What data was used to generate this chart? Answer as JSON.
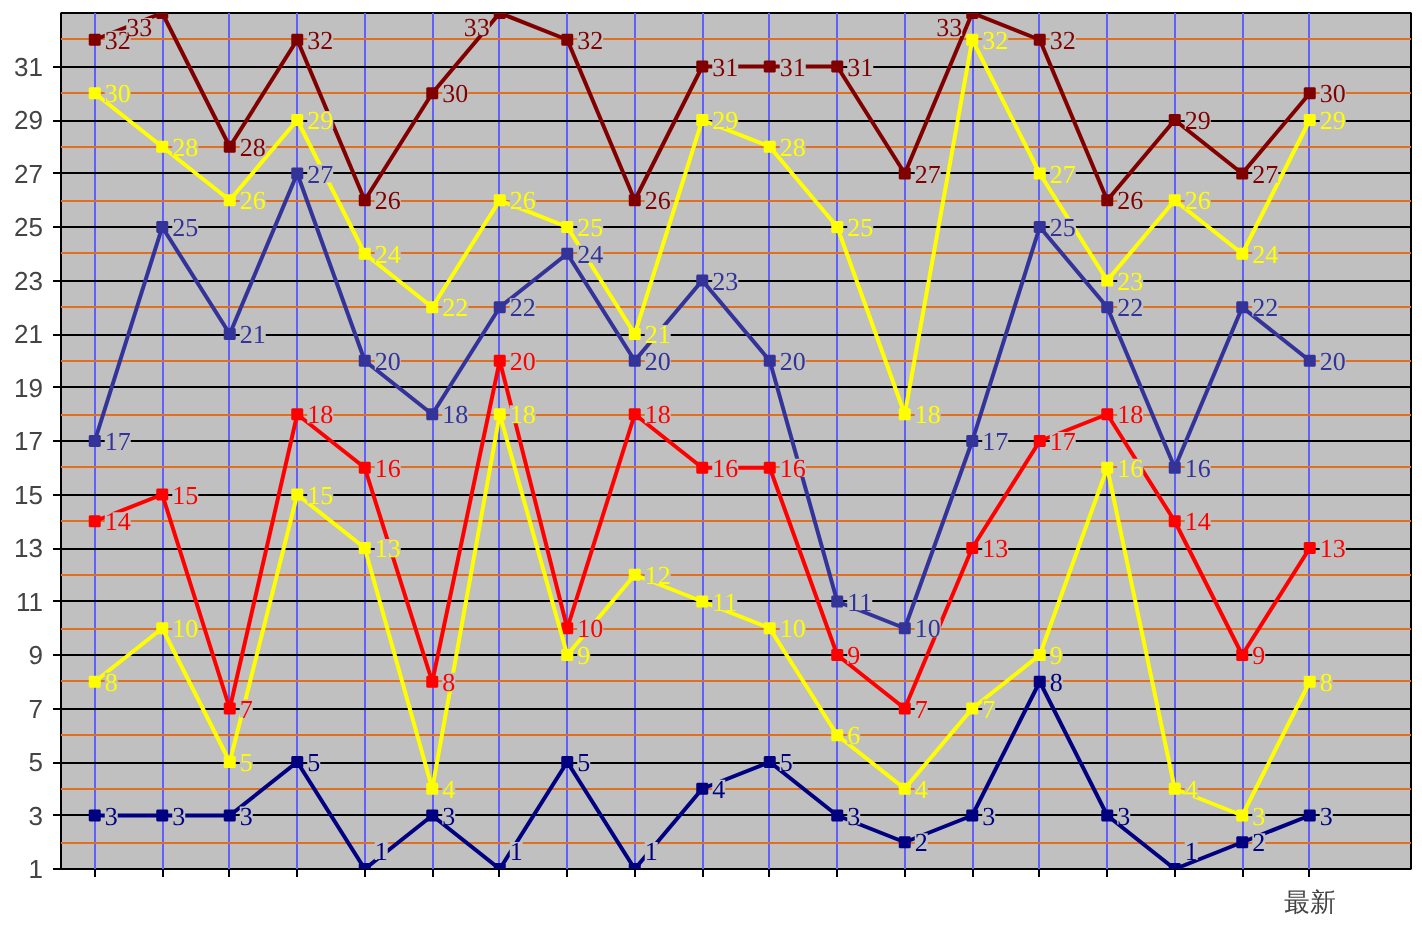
{
  "chart_data": {
    "type": "line",
    "categories": [
      null,
      null,
      null,
      null,
      null,
      null,
      null,
      null,
      null,
      null,
      null,
      null,
      null,
      null,
      null,
      null,
      null,
      null,
      "最新"
    ],
    "ylim": [
      1,
      33
    ],
    "yticks": [
      1,
      {
        "value": 2,
        "label": null
      },
      3,
      {
        "value": 4,
        "label": null
      },
      5,
      {
        "value": 6,
        "label": null
      },
      7,
      {
        "value": 8,
        "label": null
      },
      9,
      {
        "value": 10,
        "label": null
      },
      11,
      {
        "value": 12,
        "label": null
      },
      13,
      {
        "value": 14,
        "label": null
      },
      15,
      {
        "value": 16,
        "label": null
      },
      17,
      {
        "value": 18,
        "label": null
      },
      19,
      {
        "value": 20,
        "label": null
      },
      21,
      {
        "value": 22,
        "label": null
      },
      23,
      {
        "value": 24,
        "label": null
      },
      25,
      {
        "value": 26,
        "label": null
      },
      27,
      {
        "value": 28,
        "label": null
      },
      29,
      {
        "value": 30,
        "label": null
      },
      31,
      {
        "value": 32,
        "label": null
      }
    ],
    "grid": true,
    "marker": "square",
    "data_labels": true,
    "series": [
      {
        "color": "#800000",
        "values": [
          32,
          33,
          28,
          32,
          26,
          30,
          33,
          32,
          26,
          31,
          31,
          31,
          27,
          33,
          32,
          26,
          29,
          27,
          30
        ]
      },
      {
        "color": "#ffff00",
        "values": [
          30,
          28,
          26,
          29,
          24,
          22,
          26,
          25,
          21,
          29,
          28,
          25,
          18,
          32,
          27,
          23,
          26,
          24,
          29
        ]
      },
      {
        "color": "#333399",
        "values": [
          17,
          25,
          21,
          27,
          20,
          18,
          22,
          24,
          20,
          23,
          20,
          11,
          10,
          17,
          25,
          22,
          16,
          22,
          20
        ]
      },
      {
        "color": "#ff0000",
        "values": [
          14,
          15,
          7,
          18,
          16,
          8,
          20,
          10,
          18,
          16,
          16,
          9,
          7,
          13,
          17,
          18,
          14,
          9,
          13
        ]
      },
      {
        "color": "#fefe00",
        "values": [
          8,
          10,
          5,
          15,
          13,
          4,
          18,
          9,
          12,
          11,
          10,
          6,
          4,
          7,
          9,
          16,
          4,
          3,
          8
        ]
      },
      {
        "color": "#000080",
        "values": [
          3,
          3,
          3,
          5,
          1,
          3,
          1,
          5,
          1,
          4,
          5,
          3,
          2,
          3,
          8,
          3,
          1,
          2,
          3
        ]
      }
    ]
  }
}
